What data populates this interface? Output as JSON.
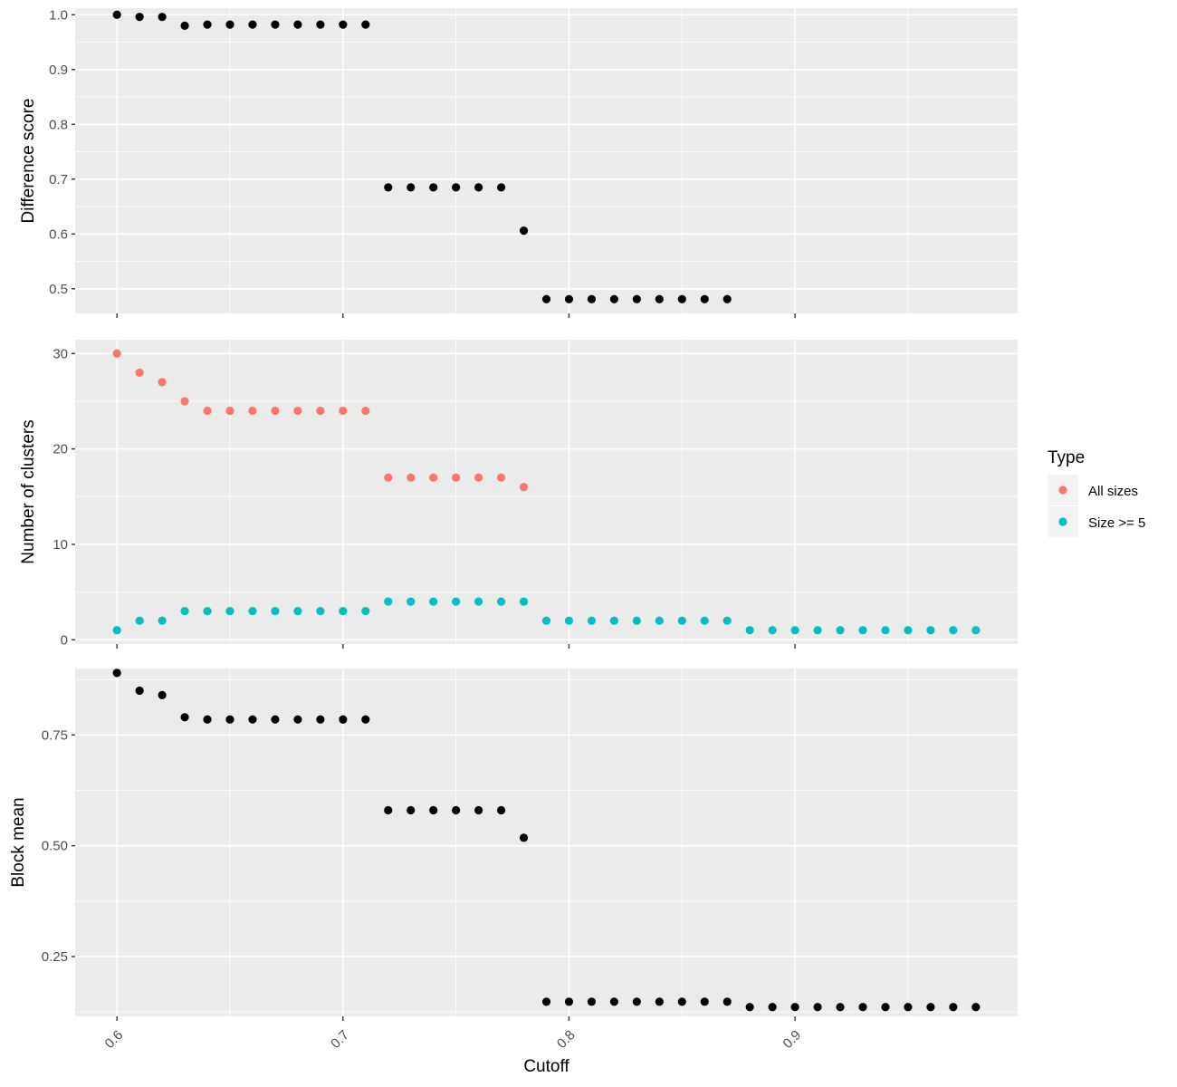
{
  "chart_data": [
    {
      "type": "scatter",
      "panel": "top",
      "ylabel": "Difference score",
      "xlim": [
        0.5815,
        0.9985
      ],
      "ylim": [
        0.455,
        1.012
      ],
      "y_ticks": [
        "0.5",
        "0.6",
        "0.7",
        "0.8",
        "0.9",
        "1.0"
      ],
      "y_tick_values": [
        0.5,
        0.6,
        0.7,
        0.8,
        0.9,
        1.0
      ],
      "color": "#000000",
      "x": [
        0.6,
        0.61,
        0.62,
        0.63,
        0.64,
        0.65,
        0.66,
        0.67,
        0.68,
        0.69,
        0.7,
        0.71,
        0.72,
        0.73,
        0.74,
        0.75,
        0.76,
        0.77,
        0.78,
        0.79,
        0.8,
        0.81,
        0.82,
        0.83,
        0.84,
        0.85,
        0.86,
        0.87
      ],
      "y": [
        1.0,
        0.996,
        0.996,
        0.98,
        0.982,
        0.982,
        0.982,
        0.982,
        0.982,
        0.982,
        0.982,
        0.982,
        0.685,
        0.685,
        0.685,
        0.685,
        0.685,
        0.685,
        0.606,
        0.481,
        0.481,
        0.481,
        0.481,
        0.481,
        0.481,
        0.481,
        0.481,
        0.481
      ]
    },
    {
      "type": "scatter",
      "panel": "middle",
      "ylabel": "Number of clusters",
      "xlim": [
        0.5815,
        0.9985
      ],
      "ylim": [
        -0.45,
        31.45
      ],
      "y_ticks": [
        "0",
        "10",
        "20",
        "30"
      ],
      "y_tick_values": [
        0,
        10,
        20,
        30
      ],
      "legend": {
        "title": "Type",
        "position": "right"
      },
      "series": [
        {
          "name": "All sizes",
          "color": "#F8766D",
          "x": [
            0.6,
            0.61,
            0.62,
            0.63,
            0.64,
            0.65,
            0.66,
            0.67,
            0.68,
            0.69,
            0.7,
            0.71,
            0.72,
            0.73,
            0.74,
            0.75,
            0.76,
            0.77,
            0.78
          ],
          "y": [
            30,
            28,
            27,
            25,
            24,
            24,
            24,
            24,
            24,
            24,
            24,
            24,
            17,
            17,
            17,
            17,
            17,
            17,
            16
          ]
        },
        {
          "name": "Size >= 5",
          "color": "#00BFC4",
          "x": [
            0.6,
            0.61,
            0.62,
            0.63,
            0.64,
            0.65,
            0.66,
            0.67,
            0.68,
            0.69,
            0.7,
            0.71,
            0.72,
            0.73,
            0.74,
            0.75,
            0.76,
            0.77,
            0.78,
            0.79,
            0.8,
            0.81,
            0.82,
            0.83,
            0.84,
            0.85,
            0.86,
            0.87,
            0.88,
            0.89,
            0.9,
            0.91,
            0.92,
            0.93,
            0.94,
            0.95,
            0.96,
            0.97,
            0.98
          ],
          "y": [
            1,
            2,
            2,
            3,
            3,
            3,
            3,
            3,
            3,
            3,
            3,
            3,
            4,
            4,
            4,
            4,
            4,
            4,
            4,
            2,
            2,
            2,
            2,
            2,
            2,
            2,
            2,
            2,
            1,
            1,
            1,
            1,
            1,
            1,
            1,
            1,
            1,
            1,
            1
          ]
        }
      ]
    },
    {
      "type": "scatter",
      "panel": "bottom",
      "ylabel": "Block mean",
      "xlabel": "Cutoff",
      "xlim": [
        0.5815,
        0.9985
      ],
      "ylim": [
        0.115,
        0.9
      ],
      "y_ticks": [
        "0.25",
        "0.50",
        "0.75"
      ],
      "y_tick_values": [
        0.25,
        0.5,
        0.75
      ],
      "x_ticks": [
        "0.6",
        "0.7",
        "0.8",
        "0.9"
      ],
      "x_tick_values": [
        0.6,
        0.7,
        0.8,
        0.9
      ],
      "color": "#000000",
      "x": [
        0.6,
        0.61,
        0.62,
        0.63,
        0.64,
        0.65,
        0.66,
        0.67,
        0.68,
        0.69,
        0.7,
        0.71,
        0.72,
        0.73,
        0.74,
        0.75,
        0.76,
        0.77,
        0.78,
        0.79,
        0.8,
        0.81,
        0.82,
        0.83,
        0.84,
        0.85,
        0.86,
        0.87,
        0.88,
        0.89,
        0.9,
        0.91,
        0.92,
        0.93,
        0.94,
        0.95,
        0.96,
        0.97,
        0.98
      ],
      "y": [
        0.89,
        0.85,
        0.84,
        0.79,
        0.785,
        0.785,
        0.785,
        0.785,
        0.785,
        0.785,
        0.785,
        0.785,
        0.58,
        0.58,
        0.58,
        0.58,
        0.58,
        0.58,
        0.518,
        0.148,
        0.148,
        0.148,
        0.148,
        0.148,
        0.148,
        0.148,
        0.148,
        0.148,
        0.136,
        0.136,
        0.136,
        0.136,
        0.136,
        0.136,
        0.136,
        0.136,
        0.136,
        0.136,
        0.136
      ]
    }
  ]
}
